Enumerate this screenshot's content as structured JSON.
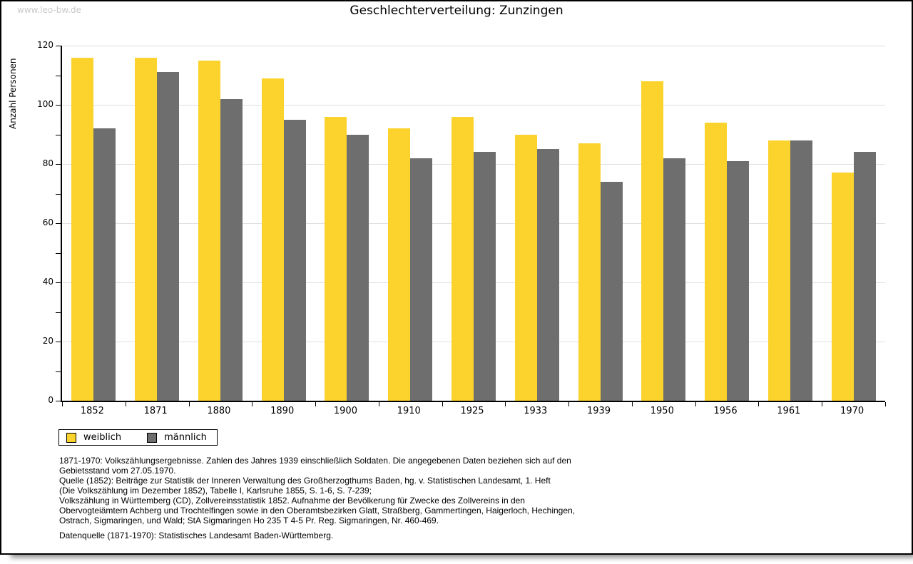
{
  "page": {
    "watermark": "www.leo-bw.de",
    "title": "Geschlechterverteilung: Zunzingen"
  },
  "chart_data": {
    "type": "bar",
    "title": "Geschlechterverteilung: Zunzingen",
    "xlabel": "",
    "ylabel": "Anzahl Personen",
    "ylim": [
      0,
      120
    ],
    "ytick_step": 20,
    "ytick_minor_step": 10,
    "grid": true,
    "legend_position": "bottom-left",
    "categories": [
      "1852",
      "1871",
      "1880",
      "1890",
      "1900",
      "1910",
      "1925",
      "1933",
      "1939",
      "1950",
      "1956",
      "1961",
      "1970"
    ],
    "series": [
      {
        "name": "weiblich",
        "color": "#fcd32d",
        "values": [
          116,
          116,
          115,
          109,
          96,
          92,
          96,
          90,
          87,
          108,
          94,
          88,
          77
        ]
      },
      {
        "name": "männlich",
        "color": "#6e6e6e",
        "values": [
          92,
          111,
          102,
          95,
          90,
          82,
          84,
          85,
          74,
          82,
          81,
          88,
          84
        ]
      }
    ]
  },
  "footer": {
    "lines": [
      "1871-1970: Volkszählungsergebnisse. Zahlen des Jahres 1939 einschließlich Soldaten. Die angegebenen Daten beziehen sich auf den",
      "Gebietsstand vom 27.05.1970.",
      "Quelle (1852): Beiträge zur Statistik der Inneren Verwaltung des Großherzogthums Baden, hg. v. Statistischen Landesamt, 1. Heft",
      "(Die Volkszählung im Dezember 1852), Tabelle I, Karlsruhe 1855, S. 1-6, S. 7-239;",
      "Volkszählung in Württemberg (CD), Zollvereinsstatistik 1852. Aufnahme der Bevölkerung für Zwecke des Zollvereins in den",
      "Obervogteiämtern Achberg und Trochtelfingen sowie in den Oberamtsbezirken Glatt, Straßberg, Gammertingen, Haigerloch, Hechingen,",
      "Ostrach, Sigmaringen, und Wald; StA Sigmaringen Ho 235 T 4-5 Pr. Reg. Sigmaringen, Nr. 460-469.",
      "",
      "Datenquelle (1871-1970): Statistisches Landesamt Baden-Württemberg."
    ]
  },
  "colors": {
    "bar_weiblich": "#fcd32d",
    "bar_männlich": "#6e6e6e",
    "gridline": "#e0e0e0",
    "axis": "#000000",
    "watermark_text": "#c9c9c9",
    "frame_border": "#000000",
    "frame_shadow": "#8f8f8f"
  }
}
